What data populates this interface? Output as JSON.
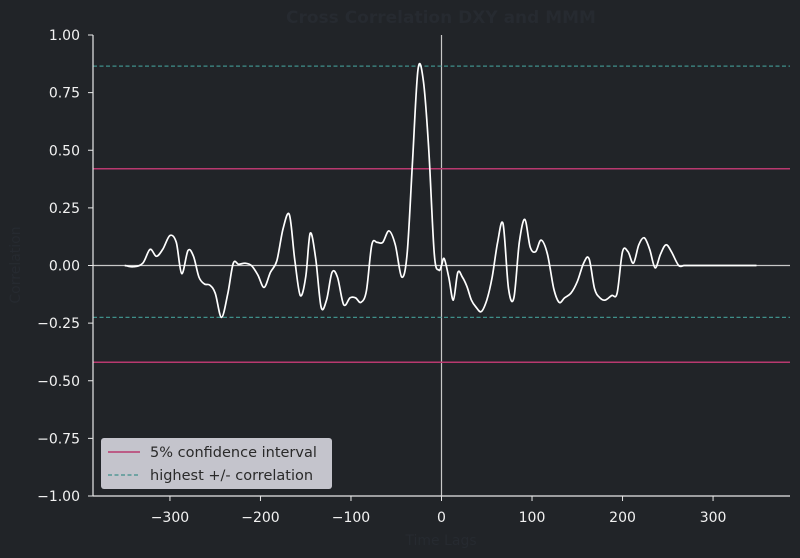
{
  "chart_data": {
    "type": "line",
    "title": "Cross Correlation DXY and MMM",
    "xlabel": "Time Lags",
    "ylabel": "Correlation",
    "xlim": [
      -385,
      385
    ],
    "ylim": [
      -1.0,
      1.0
    ],
    "x_ticks": [
      -300,
      -200,
      -100,
      0,
      100,
      200,
      300
    ],
    "x_tick_labels": [
      "−300",
      "−200",
      "−100",
      "0",
      "100",
      "200",
      "300"
    ],
    "y_ticks": [
      -1.0,
      -0.75,
      -0.5,
      -0.25,
      0.0,
      0.25,
      0.5,
      0.75,
      1.0
    ],
    "y_tick_labels": [
      "−1.00",
      "−0.75",
      "−0.50",
      "−0.25",
      "0.00",
      "0.25",
      "0.50",
      "0.75",
      "1.00"
    ],
    "grid": false,
    "legend_position": "lower-left",
    "colors": {
      "background": "#212428",
      "series": "#ffffff",
      "confidence": "#b9396f",
      "highest": "#3f8f8a",
      "axis": "#e8e8e8",
      "zero_lines": "#c8c8c8",
      "legend_bg": "#c4c4cc"
    },
    "reference_lines": {
      "confidence_interval": 0.42,
      "highest_positive": 0.865,
      "highest_negative": -0.225
    },
    "legend": [
      {
        "label": "5% confidence interval",
        "style": "solid",
        "color": "#b9396f"
      },
      {
        "label": "highest +/- correlation",
        "style": "dashed",
        "color": "#3f8f8a"
      }
    ],
    "series": [
      {
        "x": [
          -350,
          -340,
          -330,
          -322,
          -315,
          -308,
          -300,
          -293,
          -287,
          -280,
          -274,
          -268,
          -262,
          -256,
          -250,
          -243,
          -236,
          -230,
          -224,
          -217,
          -210,
          -203,
          -196,
          -189,
          -182,
          -175,
          -168,
          -162,
          -156,
          -150,
          -145,
          -139,
          -133,
          -127,
          -121,
          -115,
          -108,
          -101,
          -95,
          -89,
          -83,
          -77,
          -71,
          -65,
          -58,
          -51,
          -44,
          -38,
          -32,
          -26,
          -20,
          -14,
          -8,
          -3,
          0,
          3,
          8,
          13,
          18,
          23,
          28,
          33,
          38,
          44,
          50,
          56,
          62,
          68,
          74,
          80,
          86,
          92,
          98,
          104,
          110,
          117,
          124,
          130,
          136,
          143,
          150,
          157,
          163,
          169,
          175,
          181,
          188,
          194,
          200,
          206,
          212,
          218,
          224,
          230,
          236,
          242,
          248,
          254,
          262,
          268,
          274,
          280,
          287,
          294,
          300,
          306,
          312,
          318,
          324,
          330,
          336,
          342,
          348
        ],
        "y": [
          0.0,
          -0.005,
          0.01,
          0.07,
          0.04,
          0.07,
          0.13,
          0.1,
          -0.035,
          0.065,
          0.04,
          -0.05,
          -0.08,
          -0.085,
          -0.12,
          -0.225,
          -0.12,
          0.01,
          0.005,
          0.01,
          0.0,
          -0.04,
          -0.095,
          -0.03,
          0.02,
          0.16,
          0.22,
          0.02,
          -0.13,
          -0.05,
          0.14,
          0.03,
          -0.18,
          -0.15,
          -0.03,
          -0.05,
          -0.17,
          -0.14,
          -0.14,
          -0.16,
          -0.11,
          0.09,
          0.1,
          0.1,
          0.15,
          0.09,
          -0.05,
          0.05,
          0.45,
          0.85,
          0.8,
          0.5,
          0.05,
          -0.02,
          0.0,
          0.03,
          -0.05,
          -0.15,
          -0.03,
          -0.05,
          -0.09,
          -0.15,
          -0.18,
          -0.2,
          -0.15,
          -0.05,
          0.1,
          0.18,
          -0.1,
          -0.14,
          0.1,
          0.2,
          0.08,
          0.06,
          0.11,
          0.05,
          -0.1,
          -0.16,
          -0.14,
          -0.12,
          -0.07,
          0.01,
          0.03,
          -0.1,
          -0.14,
          -0.15,
          -0.13,
          -0.12,
          0.06,
          0.06,
          0.01,
          0.09,
          0.12,
          0.07,
          -0.01,
          0.05,
          0.09,
          0.06,
          0.0,
          0.0,
          0.0,
          0.0,
          0.0,
          0.0,
          0.0,
          0.0,
          0.0,
          0.0,
          0.0,
          0.0,
          0.0,
          0.0,
          0.0
        ]
      }
    ]
  }
}
